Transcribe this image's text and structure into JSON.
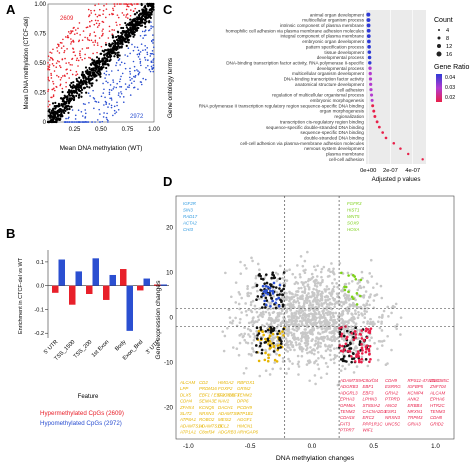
{
  "panel_labels": {
    "a": "A",
    "b": "B",
    "c": "C",
    "d": "D"
  },
  "chart_data": [
    {
      "panel": "A",
      "type": "scatter",
      "xlabel": "Mean DNA methylation (WT)",
      "ylabel": "Mean DNA methylation (CTCF-del)",
      "x_ticks": [
        0.25,
        0.5,
        0.75,
        1.0
      ],
      "y_ticks": [
        0,
        0.25,
        0.5,
        0.75,
        1.0
      ],
      "x_tick_labels": [
        "0.25",
        "0.50",
        "0.75",
        "1.00"
      ],
      "y_tick_labels": [
        "0",
        "0.25",
        "0.50",
        "0.75",
        "1.00"
      ],
      "xlim": [
        0,
        1
      ],
      "ylim": [
        0,
        1
      ],
      "annotations": [
        {
          "text": "2609",
          "color": "#e8202a"
        },
        {
          "text": "2972",
          "color": "#2b4fd1"
        }
      ],
      "series": [
        {
          "name": "Hypermethylated CpGs",
          "count": 2609,
          "color": "#e8202a"
        },
        {
          "name": "Hypomethylated CpGs",
          "count": 2972,
          "color": "#2b4fd1"
        },
        {
          "name": "",
          "color": "#000000"
        }
      ]
    },
    {
      "panel": "B",
      "type": "bar",
      "ylabel": "Enrichment in CTCF-del vs WT",
      "xlabel": "Feature",
      "categories": [
        "5' UTR",
        "TSS_1500",
        "TSS_200",
        "1st Exon",
        "Body",
        "Exon_Bnd",
        "3' UTR"
      ],
      "y_ticks": [
        -0.2,
        -0.1,
        0.0,
        0.1
      ],
      "y_tick_labels": [
        "-0.2",
        "-0.1",
        "0.0",
        "0.1"
      ],
      "ylim": [
        -0.22,
        0.15
      ],
      "series": [
        {
          "name": "Hypermethylated CpGs (2609)",
          "color": "#e8202a",
          "values": [
            -0.03,
            -0.08,
            -0.035,
            -0.06,
            0.07,
            -0.02,
            0.005
          ]
        },
        {
          "name": "Hypomethylated CpGs (2972)",
          "color": "#2b4fd1",
          "values": [
            0.11,
            0.06,
            0.115,
            0.045,
            -0.19,
            0.03,
            0.005
          ]
        }
      ],
      "legend": [
        "Hypermethylated CpGs (2609)",
        "Hypomethylated CpGs (2972)"
      ]
    },
    {
      "panel": "C",
      "type": "scatter",
      "ylabel": "Gene ontology terms",
      "xlabel": "Adjusted p values",
      "x_tick_labels": [
        "0e+00",
        "2e-07",
        "4e-07"
      ],
      "x_ticks": [
        0,
        2e-07,
        4e-07
      ],
      "xlim": [
        -2e-08,
        5.2e-07
      ],
      "legend_count_title": "Count",
      "legend_count_values": [
        "4",
        "8",
        "12",
        "16"
      ],
      "legend_ratio_title": "Gene Ratio",
      "legend_ratio_values": [
        "0.04",
        "0.03",
        "0.02"
      ],
      "terms": [
        "animal organ development",
        "multicellular organism process",
        "intrinsic component of plasma membrane",
        "homophilic cell adhesion via plasma membrane adhesion molecules",
        "integral component of plasma membrane",
        "embryonic organ development",
        "pattern specification process",
        "tissue development",
        "developmental process",
        "DNA-binding transcription factor activity, RNA polymerase II-specific",
        "developmental process",
        "multicellular organism development",
        "DNA-binding transcription factor activity",
        "anatomical structure development",
        "cell adhesion",
        "regulation of multicellular organismal process",
        "embryonic morphogenesis",
        "RNA polymerase II transcription regulatory region sequence-specific DNA binding",
        "organ morphogenesis",
        "regionalization",
        "transcription cis-regulatory region binding",
        "sequence-specific double-stranded DNA binding",
        "sequence-specific DNA binding",
        "double-stranded DNA binding",
        "cell-cell adhesion via plasma-membrane adhesion molecules",
        "nervous system development",
        "plasma membrane",
        "cell-cell adhesion"
      ],
      "p_values": [
        1e-09,
        2e-09,
        3e-09,
        4e-09,
        5e-09,
        6e-09,
        8e-09,
        1e-08,
        1.2e-08,
        1.4e-08,
        1.6e-08,
        1.8e-08,
        2e-08,
        2.2e-08,
        2.5e-08,
        3e-08,
        3.5e-08,
        4e-08,
        5e-08,
        6e-08,
        8e-08,
        1e-07,
        1.3e-07,
        1.6e-07,
        2.3e-07,
        2.9e-07,
        3.6e-07,
        4.9e-07
      ]
    },
    {
      "panel": "D",
      "type": "scatter",
      "xlabel": "DNA methylation changes",
      "ylabel": "Gene expression changes",
      "x_ticks": [
        -1.0,
        -0.5,
        0.0,
        0.5,
        1.0
      ],
      "x_tick_labels": [
        "-1.0",
        "-0.5",
        "0.0",
        "0.5",
        "1.0"
      ],
      "y_ticks": [
        -20,
        -10,
        0,
        10,
        20
      ],
      "y_tick_labels": [
        "-20",
        "-10",
        "0",
        "10",
        "20"
      ],
      "xlim": [
        -1.1,
        1.15
      ],
      "ylim": [
        -27,
        27
      ],
      "h_thresholds": [
        2,
        -2
      ],
      "v_threshold": -0.22,
      "gene_labels": [
        {
          "text": "IGF2R",
          "color": "#2f9ae0"
        },
        {
          "text": "SIN3",
          "color": "#2f9ae0"
        },
        {
          "text": "RAD17",
          "color": "#2f9ae0"
        },
        {
          "text": "ACTA2",
          "color": "#2f9ae0"
        },
        {
          "text": "CHI3",
          "color": "#2f9ae0"
        },
        {
          "text": "FGFR3",
          "color": "#7dd11a"
        },
        {
          "text": "HIST1",
          "color": "#7dd11a"
        },
        {
          "text": "WNT5",
          "color": "#7dd11a"
        },
        {
          "text": "SOX9",
          "color": "#7dd11a"
        },
        {
          "text": "HOXA",
          "color": "#7dd11a"
        },
        {
          "text": "ALCAM",
          "color": "#e6b400"
        },
        {
          "text": "CD2",
          "color": "#e6b400"
        },
        {
          "text": "HMGA2",
          "color": "#e6b400"
        },
        {
          "text": "RBFOX1",
          "color": "#e6b400"
        },
        {
          "text": "LPP",
          "color": "#e6b400"
        },
        {
          "text": "PRDM16",
          "color": "#e6b400"
        },
        {
          "text": "FOXP2",
          "color": "#e6b400"
        },
        {
          "text": "GRIN2",
          "color": "#e6b400"
        },
        {
          "text": "DLX5",
          "color": "#e6b400"
        },
        {
          "text": "EBF1 / EBF2 / EBF3",
          "color": "#e6b400"
        },
        {
          "text": "CACNA1",
          "color": "#e6b400"
        },
        {
          "text": "TENM2",
          "color": "#e6b400"
        },
        {
          "text": "CDH4",
          "color": "#e6b400"
        },
        {
          "text": "SEMA3E",
          "color": "#e6b400"
        },
        {
          "text": "NAV2",
          "color": "#e6b400"
        },
        {
          "text": "DPP6",
          "color": "#e6b400"
        },
        {
          "text": "ZFHX4",
          "color": "#e6b400"
        },
        {
          "text": "KCNQ5",
          "color": "#e6b400"
        },
        {
          "text": "DACH1",
          "color": "#e6b400"
        },
        {
          "text": "PCDH9",
          "color": "#e6b400"
        },
        {
          "text": "SLIT2",
          "color": "#e6b400"
        },
        {
          "text": "NRXN3",
          "color": "#e6b400"
        },
        {
          "text": "ADAMTS9",
          "color": "#e6b400"
        },
        {
          "text": "ATP1B1",
          "color": "#e6b400"
        },
        {
          "text": "ATP8A1",
          "color": "#e6b400"
        },
        {
          "text": "ROBO2",
          "color": "#e6b400"
        },
        {
          "text": "MEIS2",
          "color": "#e6b400"
        },
        {
          "text": "AGGF1",
          "color": "#e6b400"
        },
        {
          "text": "ADAMTS14",
          "color": "#e6b400"
        },
        {
          "text": "ADAMTS19",
          "color": "#e6b400"
        },
        {
          "text": "BCL2",
          "color": "#e6b400"
        },
        {
          "text": "HMCN1",
          "color": "#e6b400"
        },
        {
          "text": "ATP1A1",
          "color": "#e6b400"
        },
        {
          "text": "C8orf34",
          "color": "#e6b400"
        },
        {
          "text": "ADGRB3",
          "color": "#e6b400"
        },
        {
          "text": "ARHGAP6",
          "color": "#e6b400"
        },
        {
          "text": "ATP2B3",
          "color": "#e6b400"
        },
        {
          "text": "ABCA1",
          "color": "#e6b400"
        },
        {
          "text": "AKAP6",
          "color": "#e6b400"
        },
        {
          "text": "ANKFN1",
          "color": "#e6b400"
        },
        {
          "text": "ARHGEF3",
          "color": "#e6b400"
        },
        {
          "text": "BMPR1B",
          "color": "#e6b400"
        },
        {
          "text": "ATP10A",
          "color": "#e6b400"
        },
        {
          "text": "ADAMTS9A",
          "color": "#e8204a"
        },
        {
          "text": "C8orf34",
          "color": "#e8204a"
        },
        {
          "text": "CDH9",
          "color": "#e8204a"
        },
        {
          "text": "RPS11-474D1.1",
          "color": "#e8204a"
        },
        {
          "text": "ZNF385C",
          "color": "#e8204a"
        },
        {
          "text": "ADGRB3",
          "color": "#e8204a"
        },
        {
          "text": "EBF1",
          "color": "#e8204a"
        },
        {
          "text": "ESRRG",
          "color": "#e8204a"
        },
        {
          "text": "IGFBP5",
          "color": "#e8204a"
        },
        {
          "text": "ZNF704",
          "color": "#e8204a"
        },
        {
          "text": "ADGRL3",
          "color": "#e8204a"
        },
        {
          "text": "EBF3",
          "color": "#e8204a"
        },
        {
          "text": "GRIA2",
          "color": "#e8204a"
        },
        {
          "text": "KCNIP4",
          "color": "#e8204a"
        },
        {
          "text": "ALCAM",
          "color": "#e8204a"
        },
        {
          "text": "EPHA3",
          "color": "#e8204a"
        },
        {
          "text": "LPHN3",
          "color": "#e8204a"
        },
        {
          "text": "PTPRD",
          "color": "#e8204a"
        },
        {
          "text": "ANK2",
          "color": "#e8204a"
        },
        {
          "text": "EPHA6",
          "color": "#e8204a"
        },
        {
          "text": "GPM6A",
          "color": "#e8204a"
        },
        {
          "text": "ST8SIA2",
          "color": "#e8204a"
        },
        {
          "text": "ANO2",
          "color": "#e8204a"
        },
        {
          "text": "ERBB4",
          "color": "#e8204a"
        },
        {
          "text": "HTR2C",
          "color": "#e8204a"
        },
        {
          "text": "TENM2",
          "color": "#e8204a"
        },
        {
          "text": "CACNA2D3",
          "color": "#e8204a"
        },
        {
          "text": "ESR1",
          "color": "#e8204a"
        },
        {
          "text": "NRXN1",
          "color": "#e8204a"
        },
        {
          "text": "TENM3",
          "color": "#e8204a"
        },
        {
          "text": "CDH18",
          "color": "#e8204a"
        },
        {
          "text": "ERC2",
          "color": "#e8204a"
        },
        {
          "text": "NRXN3",
          "color": "#e8204a"
        },
        {
          "text": "TRPM3",
          "color": "#e8204a"
        },
        {
          "text": "CDH8",
          "color": "#e8204a"
        },
        {
          "text": "FAT3",
          "color": "#e8204a"
        },
        {
          "text": "PPP1R1C",
          "color": "#e8204a"
        },
        {
          "text": "UNC5C",
          "color": "#e8204a"
        },
        {
          "text": "GRIA3",
          "color": "#e8204a"
        },
        {
          "text": "GRID2",
          "color": "#e8204a"
        },
        {
          "text": "PTPRT",
          "color": "#e8204a"
        },
        {
          "text": "WIF1",
          "color": "#e8204a"
        }
      ]
    }
  ]
}
